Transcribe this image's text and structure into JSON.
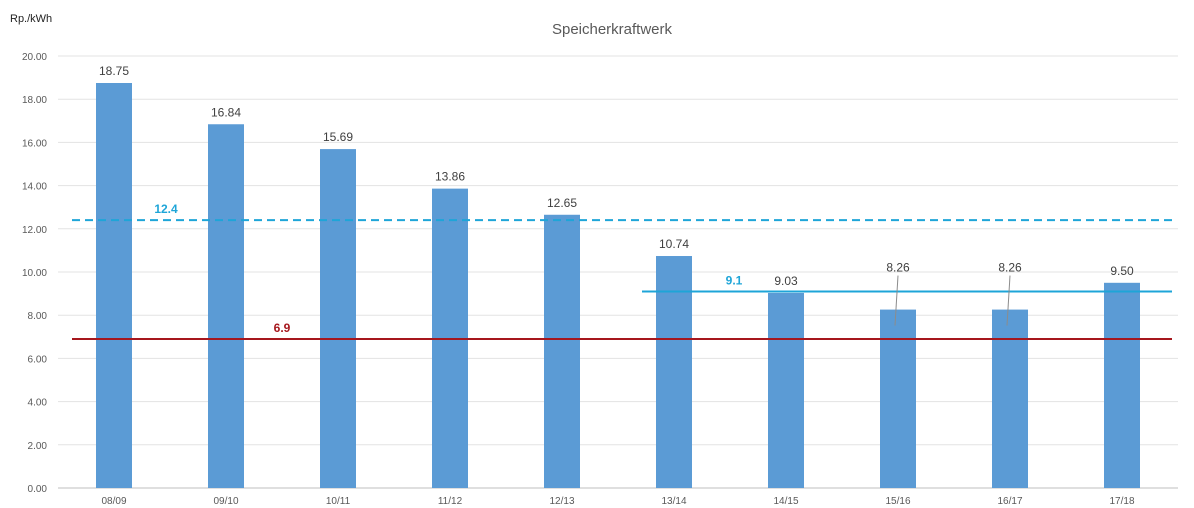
{
  "chart_data": {
    "type": "bar",
    "title": "Speicherkraftwerk",
    "xlabel": "",
    "ylabel": "Rp./kWh",
    "ylim": [
      0,
      20
    ],
    "yticks": [
      "0.00",
      "2.00",
      "4.00",
      "6.00",
      "8.00",
      "10.00",
      "12.00",
      "14.00",
      "16.00",
      "18.00",
      "20.00"
    ],
    "grid": true,
    "categories": [
      "08/09",
      "09/10",
      "10/11",
      "11/12",
      "12/13",
      "13/14",
      "14/15",
      "15/16",
      "16/17",
      "17/18"
    ],
    "values": [
      18.75,
      16.84,
      15.69,
      13.86,
      12.65,
      10.74,
      9.03,
      8.26,
      8.26,
      9.5
    ],
    "value_labels": [
      "18.75",
      "16.84",
      "15.69",
      "13.86",
      "12.65",
      "10.74",
      "9.03",
      "8.26",
      "8.26",
      "9.50"
    ],
    "bar_color": "#5B9BD5",
    "reference_lines": [
      {
        "value": 12.4,
        "label": "12.4",
        "style": "dashed",
        "color": "#1EA5D8",
        "from_category": 0,
        "to_category": 9
      },
      {
        "value": 6.9,
        "label": "6.9",
        "style": "solid",
        "color": "#A6171D",
        "from_category": 0,
        "to_category": 9
      },
      {
        "value": 9.1,
        "label": "9.1",
        "style": "solid",
        "color": "#1EA5D8",
        "from_category": 5,
        "to_category": 9
      }
    ]
  }
}
